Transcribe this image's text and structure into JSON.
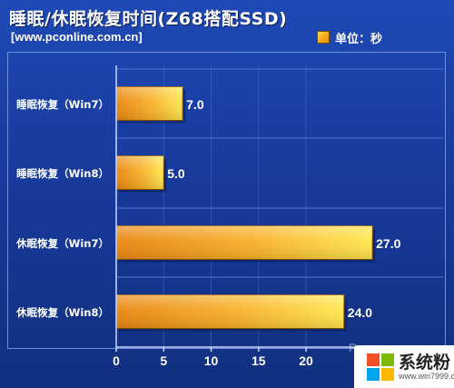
{
  "header": {
    "title": "睡眠/休眠恢复时间(Z68搭配SSD)",
    "source": "[www.pconline.com.cn]",
    "legend_label": "单位：秒"
  },
  "chart_data": {
    "type": "bar",
    "orientation": "horizontal",
    "title": "睡眠/休眠恢复时间(Z68搭配SSD)",
    "categories": [
      "睡眠恢复（Win7）",
      "睡眠恢复（Win8）",
      "休眠恢复（Win7）",
      "休眠恢复（Win8）"
    ],
    "values": [
      7.0,
      5.0,
      27.0,
      24.0
    ],
    "value_labels": [
      "7.0",
      "5.0",
      "27.0",
      "24.0"
    ],
    "unit": "单位：秒",
    "xlim": [
      0,
      30
    ],
    "xticks": [
      "0",
      "5",
      "10",
      "15",
      "20"
    ],
    "grid": true,
    "legend_position": "top-right",
    "colors": {
      "bar_light": "#ffe74d",
      "bar_dark": "#e8860f",
      "background": "#1a3ea3",
      "grid": "#4f74d6"
    }
  },
  "watermark": {
    "brand": "系统粉",
    "url": "www.win7999.com",
    "faint_text": "P"
  }
}
